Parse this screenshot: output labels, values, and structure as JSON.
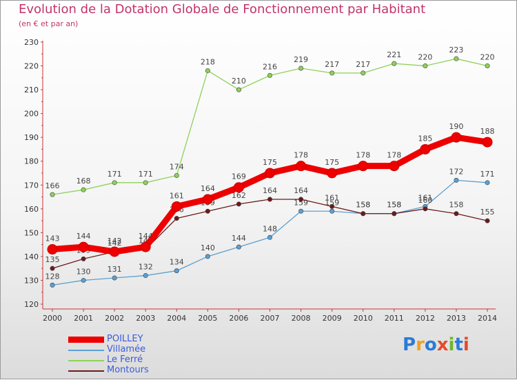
{
  "title": "Evolution de la Dotation Globale de Fonctionnement par Habitant",
  "subtitle": "(en € et par an)",
  "logo": {
    "text": "Proxiti",
    "colors": [
      "#2b7bd6",
      "#f0a020",
      "#2b7bd6",
      "#e8482a",
      "#70b52a",
      "#2b7bd6",
      "#e8482a"
    ]
  },
  "chart_data": {
    "type": "line",
    "title": "Evolution de la Dotation Globale de Fonctionnement par Habitant",
    "subtitle": "(en € et par an)",
    "xlabel": "",
    "ylabel": "",
    "ylim": [
      120,
      230
    ],
    "yticks": [
      120,
      130,
      140,
      150,
      160,
      170,
      180,
      190,
      200,
      210,
      220,
      230
    ],
    "categories": [
      "2000",
      "2001",
      "2002",
      "2003",
      "2004",
      "2005",
      "2006",
      "2007",
      "2008",
      "2009",
      "2010",
      "2011",
      "2012",
      "2013",
      "2014"
    ],
    "grid": false,
    "legend": "bottom-left",
    "series": [
      {
        "name": "Le Ferré",
        "color": "#8ed15a",
        "values": [
          166,
          168,
          171,
          171,
          174,
          218,
          210,
          216,
          219,
          217,
          217,
          221,
          220,
          223,
          220
        ]
      },
      {
        "name": "Villamée",
        "color": "#5aa0d2",
        "values": [
          128,
          130,
          131,
          132,
          134,
          140,
          144,
          148,
          159,
          159,
          158,
          158,
          161,
          172,
          171
        ]
      },
      {
        "name": "Montours",
        "color": "#6b1a1a",
        "values": [
          135,
          139,
          142,
          143,
          156,
          159,
          162,
          164,
          164,
          161,
          158,
          158,
          160,
          158,
          155
        ]
      },
      {
        "name": "POILLEY",
        "color": "#ee0000",
        "values": [
          143,
          144,
          142,
          144,
          161,
          164,
          169,
          175,
          178,
          175,
          178,
          178,
          185,
          190,
          188
        ]
      }
    ],
    "legend_order": [
      "POILLEY",
      "Villamée",
      "Le Ferré",
      "Montours"
    ]
  }
}
